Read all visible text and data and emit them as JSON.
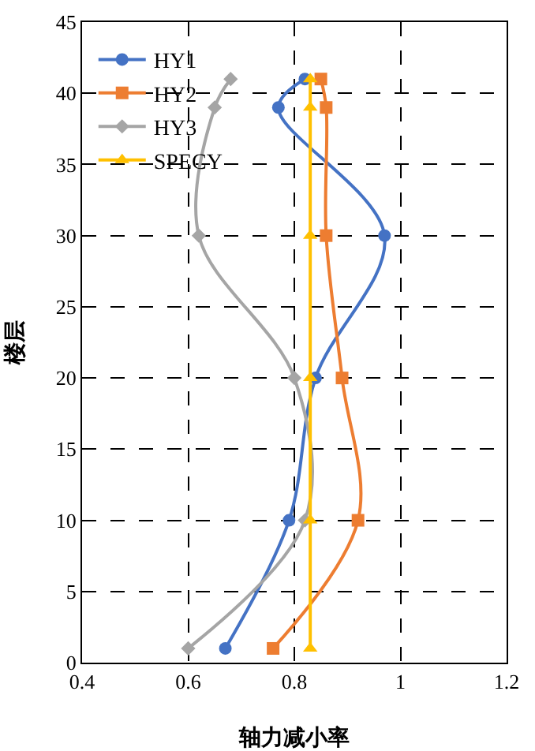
{
  "chart_data": {
    "type": "line",
    "xlabel": "轴力减小率",
    "ylabel": "楼层",
    "xlim": [
      0.4,
      1.2
    ],
    "xticks": [
      0.4,
      0.6,
      0.8,
      1,
      1.2
    ],
    "ylim": [
      0,
      45
    ],
    "yticks": [
      0,
      5,
      10,
      15,
      20,
      25,
      30,
      35,
      40,
      45
    ],
    "grid": true,
    "legend": "top left",
    "line_style": "solid",
    "series": [
      {
        "name": "HY1",
        "color": "#4472c4",
        "marker": "circle",
        "x": [
          0.67,
          0.79,
          0.84,
          0.97,
          0.77,
          0.82
        ],
        "values": [
          1,
          10,
          20,
          30,
          39,
          41
        ]
      },
      {
        "name": "HY2",
        "color": "#ed7d31",
        "marker": "square",
        "x": [
          0.76,
          0.92,
          0.89,
          0.86,
          0.86,
          0.85
        ],
        "values": [
          1,
          10,
          20,
          30,
          39,
          41
        ]
      },
      {
        "name": "HY3",
        "color": "#a5a5a5",
        "marker": "diamond",
        "x": [
          0.6,
          0.82,
          0.8,
          0.62,
          0.65,
          0.68
        ],
        "values": [
          1,
          10,
          20,
          30,
          39,
          41
        ]
      },
      {
        "name": "SPECY",
        "color": "#ffc000",
        "marker": "triangle",
        "x": [
          0.83,
          0.83,
          0.83,
          0.83,
          0.83,
          0.83
        ],
        "values": [
          1,
          10,
          20,
          30,
          39,
          41
        ]
      }
    ]
  }
}
